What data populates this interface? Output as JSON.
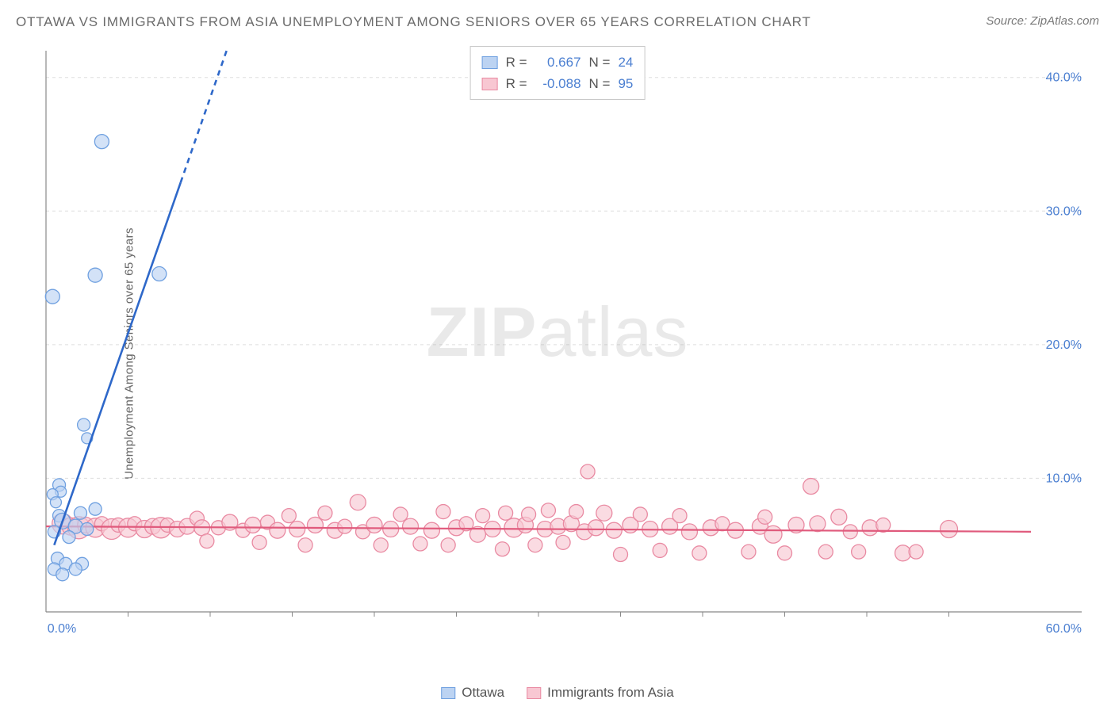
{
  "title": "OTTAWA VS IMMIGRANTS FROM ASIA UNEMPLOYMENT AMONG SENIORS OVER 65 YEARS CORRELATION CHART",
  "source_label": "Source:",
  "source_value": "ZipAtlas.com",
  "ylabel": "Unemployment Among Seniors over 65 years",
  "watermark_a": "ZIP",
  "watermark_b": "atlas",
  "chart": {
    "type": "scatter",
    "xlim": [
      0,
      60
    ],
    "ylim": [
      0,
      42
    ],
    "x_ticks_minor_step": 5,
    "x_ticks": [
      0,
      60
    ],
    "x_tick_labels": [
      "0.0%",
      "60.0%"
    ],
    "y_ticks": [
      10,
      20,
      30,
      40
    ],
    "y_tick_labels": [
      "10.0%",
      "20.0%",
      "30.0%",
      "40.0%"
    ],
    "grid_color": "#dddddd",
    "axis_color": "#888888",
    "background_color": "#ffffff",
    "tick_label_color": "#4b7fd1",
    "tick_label_fontsize": 16,
    "series": [
      {
        "name": "Ottawa",
        "color_fill": "#bcd3f2",
        "color_stroke": "#6fa0e0",
        "marker_radius_base": 8,
        "line_color": "#2e68c9",
        "line_width": 2.6,
        "R": 0.667,
        "N": 24,
        "regression": {
          "x1": 0.5,
          "y1": 5.0,
          "x2": 11.0,
          "y2": 42.0,
          "dash_after_x": 8.2
        },
        "points": [
          {
            "x": 0.4,
            "y": 23.6,
            "r": 9
          },
          {
            "x": 3.4,
            "y": 35.2,
            "r": 9
          },
          {
            "x": 3.0,
            "y": 25.2,
            "r": 9
          },
          {
            "x": 6.9,
            "y": 25.3,
            "r": 9
          },
          {
            "x": 2.3,
            "y": 14.0,
            "r": 8
          },
          {
            "x": 2.5,
            "y": 13.0,
            "r": 7
          },
          {
            "x": 0.8,
            "y": 9.5,
            "r": 8
          },
          {
            "x": 0.9,
            "y": 9.0,
            "r": 7
          },
          {
            "x": 0.4,
            "y": 8.8,
            "r": 7
          },
          {
            "x": 0.6,
            "y": 8.2,
            "r": 7
          },
          {
            "x": 3.0,
            "y": 7.7,
            "r": 8
          },
          {
            "x": 2.1,
            "y": 7.4,
            "r": 8
          },
          {
            "x": 0.8,
            "y": 7.2,
            "r": 8
          },
          {
            "x": 1.0,
            "y": 6.8,
            "r": 10
          },
          {
            "x": 1.8,
            "y": 6.4,
            "r": 9
          },
          {
            "x": 2.5,
            "y": 6.2,
            "r": 8
          },
          {
            "x": 0.5,
            "y": 6.0,
            "r": 8
          },
          {
            "x": 1.4,
            "y": 5.6,
            "r": 8
          },
          {
            "x": 0.7,
            "y": 4.0,
            "r": 8
          },
          {
            "x": 1.2,
            "y": 3.6,
            "r": 8
          },
          {
            "x": 2.2,
            "y": 3.6,
            "r": 8
          },
          {
            "x": 0.5,
            "y": 3.2,
            "r": 8
          },
          {
            "x": 1.8,
            "y": 3.2,
            "r": 8
          },
          {
            "x": 1.0,
            "y": 2.8,
            "r": 8
          }
        ]
      },
      {
        "name": "Immigrants from Asia",
        "color_fill": "#f8c7d2",
        "color_stroke": "#e98aa2",
        "marker_radius_base": 9,
        "line_color": "#e05a7c",
        "line_width": 2.2,
        "R": -0.088,
        "N": 95,
        "regression": {
          "x1": 0.0,
          "y1": 6.4,
          "x2": 60.0,
          "y2": 6.0
        },
        "points": [
          {
            "x": 1.0,
            "y": 6.6,
            "r": 13
          },
          {
            "x": 1.5,
            "y": 6.4,
            "r": 11
          },
          {
            "x": 2.0,
            "y": 6.3,
            "r": 14
          },
          {
            "x": 2.4,
            "y": 6.5,
            "r": 10
          },
          {
            "x": 3.0,
            "y": 6.3,
            "r": 12
          },
          {
            "x": 3.4,
            "y": 6.6,
            "r": 9
          },
          {
            "x": 4.0,
            "y": 6.2,
            "r": 13
          },
          {
            "x": 4.4,
            "y": 6.5,
            "r": 9
          },
          {
            "x": 5.0,
            "y": 6.3,
            "r": 12
          },
          {
            "x": 5.4,
            "y": 6.6,
            "r": 9
          },
          {
            "x": 6.0,
            "y": 6.2,
            "r": 11
          },
          {
            "x": 6.5,
            "y": 6.4,
            "r": 10
          },
          {
            "x": 7.0,
            "y": 6.3,
            "r": 13
          },
          {
            "x": 7.4,
            "y": 6.5,
            "r": 9
          },
          {
            "x": 8.0,
            "y": 6.2,
            "r": 10
          },
          {
            "x": 8.6,
            "y": 6.4,
            "r": 10
          },
          {
            "x": 9.2,
            "y": 7.0,
            "r": 9
          },
          {
            "x": 9.5,
            "y": 6.3,
            "r": 10
          },
          {
            "x": 9.8,
            "y": 5.3,
            "r": 9
          },
          {
            "x": 10.5,
            "y": 6.3,
            "r": 9
          },
          {
            "x": 11.2,
            "y": 6.7,
            "r": 10
          },
          {
            "x": 12.0,
            "y": 6.1,
            "r": 9
          },
          {
            "x": 12.6,
            "y": 6.5,
            "r": 10
          },
          {
            "x": 13.0,
            "y": 5.2,
            "r": 9
          },
          {
            "x": 13.5,
            "y": 6.7,
            "r": 9
          },
          {
            "x": 14.1,
            "y": 6.1,
            "r": 10
          },
          {
            "x": 14.8,
            "y": 7.2,
            "r": 9
          },
          {
            "x": 15.3,
            "y": 6.2,
            "r": 10
          },
          {
            "x": 15.8,
            "y": 5.0,
            "r": 9
          },
          {
            "x": 16.4,
            "y": 6.5,
            "r": 10
          },
          {
            "x": 17.0,
            "y": 7.4,
            "r": 9
          },
          {
            "x": 17.6,
            "y": 6.1,
            "r": 10
          },
          {
            "x": 18.2,
            "y": 6.4,
            "r": 9
          },
          {
            "x": 19.0,
            "y": 8.2,
            "r": 10
          },
          {
            "x": 19.3,
            "y": 6.0,
            "r": 9
          },
          {
            "x": 20.0,
            "y": 6.5,
            "r": 10
          },
          {
            "x": 20.4,
            "y": 5.0,
            "r": 9
          },
          {
            "x": 21.0,
            "y": 6.2,
            "r": 10
          },
          {
            "x": 21.6,
            "y": 7.3,
            "r": 9
          },
          {
            "x": 22.2,
            "y": 6.4,
            "r": 10
          },
          {
            "x": 22.8,
            "y": 5.1,
            "r": 9
          },
          {
            "x": 23.5,
            "y": 6.1,
            "r": 10
          },
          {
            "x": 24.2,
            "y": 7.5,
            "r": 9
          },
          {
            "x": 24.5,
            "y": 5.0,
            "r": 9
          },
          {
            "x": 25.0,
            "y": 6.3,
            "r": 10
          },
          {
            "x": 25.6,
            "y": 6.6,
            "r": 9
          },
          {
            "x": 26.3,
            "y": 5.8,
            "r": 10
          },
          {
            "x": 26.6,
            "y": 7.2,
            "r": 9
          },
          {
            "x": 27.2,
            "y": 6.2,
            "r": 10
          },
          {
            "x": 27.8,
            "y": 4.7,
            "r": 9
          },
          {
            "x": 28.0,
            "y": 7.4,
            "r": 9
          },
          {
            "x": 28.5,
            "y": 6.3,
            "r": 12
          },
          {
            "x": 29.2,
            "y": 6.5,
            "r": 10
          },
          {
            "x": 29.4,
            "y": 7.3,
            "r": 9
          },
          {
            "x": 29.8,
            "y": 5.0,
            "r": 9
          },
          {
            "x": 30.4,
            "y": 6.2,
            "r": 10
          },
          {
            "x": 30.6,
            "y": 7.6,
            "r": 9
          },
          {
            "x": 31.2,
            "y": 6.4,
            "r": 10
          },
          {
            "x": 31.5,
            "y": 5.2,
            "r": 9
          },
          {
            "x": 32.0,
            "y": 6.6,
            "r": 10
          },
          {
            "x": 32.3,
            "y": 7.5,
            "r": 9
          },
          {
            "x": 32.8,
            "y": 6.0,
            "r": 10
          },
          {
            "x": 33.0,
            "y": 10.5,
            "r": 9
          },
          {
            "x": 33.5,
            "y": 6.3,
            "r": 10
          },
          {
            "x": 34.0,
            "y": 7.4,
            "r": 10
          },
          {
            "x": 34.6,
            "y": 6.1,
            "r": 10
          },
          {
            "x": 35.0,
            "y": 4.3,
            "r": 9
          },
          {
            "x": 35.6,
            "y": 6.5,
            "r": 10
          },
          {
            "x": 36.2,
            "y": 7.3,
            "r": 9
          },
          {
            "x": 36.8,
            "y": 6.2,
            "r": 10
          },
          {
            "x": 37.4,
            "y": 4.6,
            "r": 9
          },
          {
            "x": 38.0,
            "y": 6.4,
            "r": 10
          },
          {
            "x": 38.6,
            "y": 7.2,
            "r": 9
          },
          {
            "x": 39.2,
            "y": 6.0,
            "r": 10
          },
          {
            "x": 39.8,
            "y": 4.4,
            "r": 9
          },
          {
            "x": 40.5,
            "y": 6.3,
            "r": 10
          },
          {
            "x": 41.2,
            "y": 6.6,
            "r": 9
          },
          {
            "x": 42.0,
            "y": 6.1,
            "r": 10
          },
          {
            "x": 42.8,
            "y": 4.5,
            "r": 9
          },
          {
            "x": 43.5,
            "y": 6.4,
            "r": 10
          },
          {
            "x": 43.8,
            "y": 7.1,
            "r": 9
          },
          {
            "x": 44.3,
            "y": 5.8,
            "r": 11
          },
          {
            "x": 45.0,
            "y": 4.4,
            "r": 9
          },
          {
            "x": 45.7,
            "y": 6.5,
            "r": 10
          },
          {
            "x": 46.6,
            "y": 9.4,
            "r": 10
          },
          {
            "x": 47.0,
            "y": 6.6,
            "r": 10
          },
          {
            "x": 47.5,
            "y": 4.5,
            "r": 9
          },
          {
            "x": 48.3,
            "y": 7.1,
            "r": 10
          },
          {
            "x": 49.0,
            "y": 6.0,
            "r": 9
          },
          {
            "x": 49.5,
            "y": 4.5,
            "r": 9
          },
          {
            "x": 50.2,
            "y": 6.3,
            "r": 10
          },
          {
            "x": 51.0,
            "y": 6.5,
            "r": 9
          },
          {
            "x": 52.2,
            "y": 4.4,
            "r": 10
          },
          {
            "x": 53.0,
            "y": 4.5,
            "r": 9
          },
          {
            "x": 55.0,
            "y": 6.2,
            "r": 11
          }
        ]
      }
    ],
    "legend_bottom": [
      {
        "swatch_fill": "#bcd3f2",
        "swatch_stroke": "#6fa0e0",
        "label": "Ottawa"
      },
      {
        "swatch_fill": "#f8c7d2",
        "swatch_stroke": "#e98aa2",
        "label": "Immigrants from Asia"
      }
    ],
    "legend_top": [
      {
        "swatch_fill": "#bcd3f2",
        "swatch_stroke": "#6fa0e0",
        "r_label": "R =",
        "r_value": "0.667",
        "n_label": "N =",
        "n_value": "24"
      },
      {
        "swatch_fill": "#f8c7d2",
        "swatch_stroke": "#e98aa2",
        "r_label": "R =",
        "r_value": "-0.088",
        "n_label": "N =",
        "n_value": "95"
      }
    ]
  }
}
